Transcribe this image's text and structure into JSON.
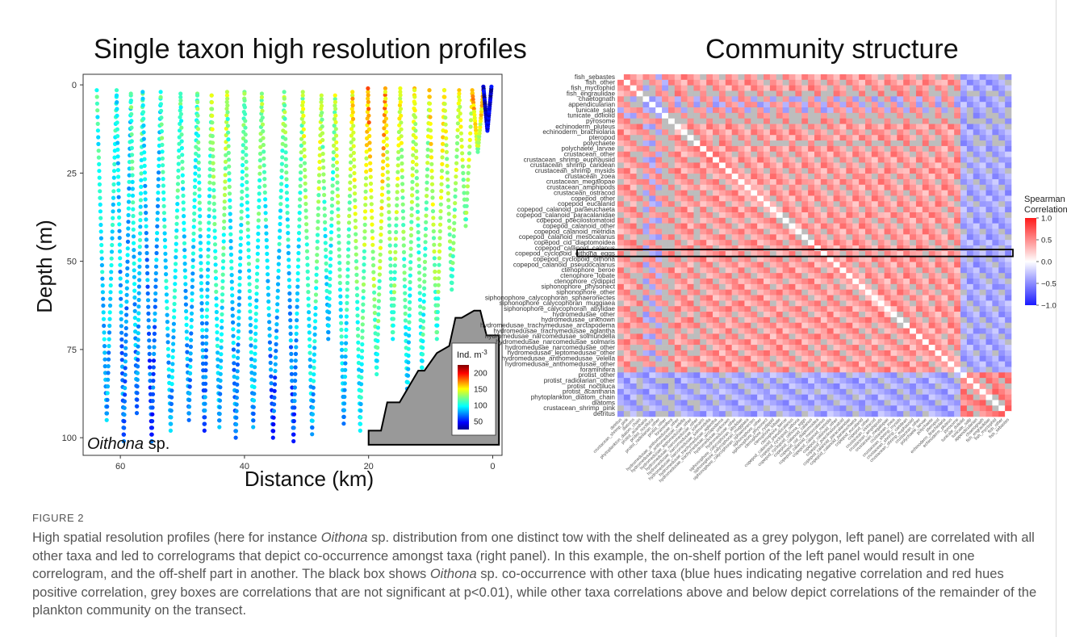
{
  "titles": {
    "left": "Single taxon high resolution profiles",
    "right": "Community structure"
  },
  "chart_data": [
    {
      "type": "scatter",
      "title": "Single taxon high resolution profiles",
      "xlabel": "Distance (km)",
      "ylabel": "Depth (m)",
      "xlim": [
        66,
        -1.5
      ],
      "ylim": [
        105,
        -3
      ],
      "x_ticks": [
        60,
        40,
        20,
        0
      ],
      "y_ticks": [
        0,
        25,
        50,
        75,
        100
      ],
      "annotation": "Oithona sp.",
      "annotation_italic": "Oithona",
      "annotation_rest": " sp.",
      "legend": {
        "title": "Ind. m",
        "title_sup": "-3",
        "ticks": [
          200,
          150,
          100,
          50
        ],
        "range": [
          25,
          225
        ],
        "placement": "bottom-right"
      },
      "shelf_polygon": [
        [
          20,
          100
        ],
        [
          20,
          98
        ],
        [
          18,
          98
        ],
        [
          17,
          90
        ],
        [
          15,
          90
        ],
        [
          12,
          81
        ],
        [
          11,
          81
        ],
        [
          9,
          76
        ],
        [
          7,
          74
        ],
        [
          6,
          66
        ],
        [
          5,
          66
        ],
        [
          3,
          64
        ],
        [
          2,
          64
        ],
        [
          1,
          71
        ],
        [
          -1,
          71
        ],
        [
          -1,
          102
        ],
        [
          20,
          102
        ]
      ],
      "profiles": [
        {
          "top": 63.8,
          "bottom": 60.6,
          "dmin": 1.5,
          "dmax": 95,
          "top_val": 110,
          "bottom_val": 80
        },
        {
          "top": 60.6,
          "bottom": 58.3,
          "dmin": 3,
          "dmax": 101,
          "top_val": 100,
          "bottom_val": 70
        },
        {
          "top": 58.3,
          "bottom": 56.4,
          "dmin": 2.5,
          "dmax": 93,
          "top_val": 120,
          "bottom_val": 70
        },
        {
          "top": 56.4,
          "bottom": 53.5,
          "dmin": 2,
          "dmax": 101,
          "top_val": 100,
          "bottom_val": 60
        },
        {
          "top": 53.5,
          "bottom": 50.3,
          "dmin": 3.5,
          "dmax": 98,
          "top_val": 120,
          "bottom_val": 80
        },
        {
          "top": 50.3,
          "bottom": 47.6,
          "dmin": 2.5,
          "dmax": 95,
          "top_val": 115,
          "bottom_val": 75
        },
        {
          "top": 47.6,
          "bottom": 45.3,
          "dmin": 3,
          "dmax": 98,
          "top_val": 125,
          "bottom_val": 70
        },
        {
          "top": 45.3,
          "bottom": 42.8,
          "dmin": 3,
          "dmax": 97,
          "top_val": 140,
          "bottom_val": 80
        },
        {
          "top": 42.8,
          "bottom": 40.0,
          "dmin": 2,
          "dmax": 100,
          "top_val": 125,
          "bottom_val": 70
        },
        {
          "top": 40.0,
          "bottom": 37.2,
          "dmin": 2.5,
          "dmax": 97,
          "top_val": 130,
          "bottom_val": 80
        },
        {
          "top": 37.2,
          "bottom": 33.6,
          "dmin": 3.5,
          "dmax": 100,
          "top_val": 130,
          "bottom_val": 60
        },
        {
          "top": 33.6,
          "bottom": 30.6,
          "dmin": 2,
          "dmax": 101,
          "top_val": 130,
          "bottom_val": 60
        },
        {
          "top": 30.6,
          "bottom": 27.6,
          "dmin": 3,
          "dmax": 99,
          "top_val": 150,
          "bottom_val": 80
        },
        {
          "top": 27.6,
          "bottom": 25.4,
          "dmin": 4,
          "dmax": 72,
          "top_val": 130,
          "bottom_val": 90
        },
        {
          "top": 25.4,
          "bottom": 22.6,
          "dmin": 3,
          "dmax": 96,
          "top_val": 150,
          "bottom_val": 80
        },
        {
          "top": 22.6,
          "bottom": 20.1,
          "dmin": 2,
          "dmax": 98,
          "top_val": 160,
          "bottom_val": 90
        },
        {
          "top": 20.1,
          "bottom": 17.3,
          "dmin": 1,
          "dmax": 82,
          "top_val": 180,
          "bottom_val": 100
        },
        {
          "top": 17.3,
          "bottom": 14.9,
          "dmin": 2,
          "dmax": 72,
          "top_val": 150,
          "bottom_val": 110
        },
        {
          "top": 14.9,
          "bottom": 12.6,
          "dmin": 1,
          "dmax": 90,
          "top_val": 150,
          "bottom_val": 90
        },
        {
          "top": 12.6,
          "bottom": 10.2,
          "dmin": 1.5,
          "dmax": 82,
          "top_val": 140,
          "bottom_val": 100
        },
        {
          "top": 10.2,
          "bottom": 7.8,
          "dmin": 1.5,
          "dmax": 72,
          "top_val": 160,
          "bottom_val": 110
        },
        {
          "top": 7.8,
          "bottom": 5.4,
          "dmin": 1.5,
          "dmax": 58,
          "top_val": 150,
          "bottom_val": 110
        },
        {
          "top": 5.4,
          "bottom": 3.3,
          "dmin": 2.5,
          "dmax": 40,
          "top_val": 150,
          "bottom_val": 120
        },
        {
          "top": 3.3,
          "bottom": 1.5,
          "dmin": 1.5,
          "dmax": 19,
          "top_val": 170,
          "bottom_val": 130
        },
        {
          "top": 1.5,
          "bottom": 0.2,
          "dmin": 0.5,
          "dmax": 13,
          "top_val": 40,
          "bottom_val": 40
        }
      ]
    },
    {
      "type": "heatmap",
      "title": "Community structure",
      "taxa": [
        "fish_sebastes",
        "fish_other",
        "fish_myctophid",
        "fish_engraulidae",
        "chaetognath",
        "appendicularian",
        "tunicate_salp",
        "tunicate_doliolid",
        "pyrosome",
        "echinoderm_pluteus",
        "echinoderm_brachiolaria",
        "pteropod",
        "polychaete",
        "polychaete_larvae",
        "crustacean_other",
        "crustacean_shrimp_euphausiid",
        "crustacean_shrimp_caridean",
        "crustacean_shrimp_mysids",
        "crustacean_zoea",
        "crustacean_megalopae",
        "crustacean_amphipods",
        "crustacean_ostracod",
        "copepod_other",
        "copepod_eucalanid",
        "copepod_calanoid_paraeuchaeta",
        "copepod_calanoid_paracalanidae",
        "copepod_poecilostomatoid",
        "copepod_calanoid_other",
        "copepod_calanoid_metridia",
        "copepod_calanoid_mesocalanus",
        "copepod_cid_diaptomoidea",
        "copepod_calanoid_calanus",
        "copepod_cyclopoid_oithona_eggs",
        "copepod_cyclopoid_oithona",
        "copepod_calanoid_pseudocalanus",
        "ctenophore_beroe",
        "ctenophore_lobate",
        "ctenophore_cydippid",
        "siphonophore_physonect",
        "siphonophore_other",
        "siphonophore_calycophoran_sphaeronectes",
        "siphonophore_calycophoran_muggiaea",
        "siphonophore_calycophoran_abylidae",
        "hydromedusae_other",
        "hydromedusae_unknown",
        "hydromedusae_trachymedusae_arctapodema",
        "hydromedusae_trachymedusae_aglantha",
        "hydromedusae_narcomedusae_solmundella",
        "hydromedusae_narcomedusae_solmaris",
        "hydromedusae_narcomedusae_other",
        "hydromedusae_leptomedusae_other",
        "hydromedusae_anthomedusae_velella",
        "hydromedusae_anthomedusae_other",
        "foraminifera",
        "protist_other",
        "protist_radiolarian_other",
        "protist_noctiluca",
        "protist_acantharia",
        "phytoplankton_diatom_chain",
        "diatoms",
        "crustacean_shrimp_pink",
        "detritus"
      ],
      "highlight_taxon": "copepod_cyclopoid_oithona",
      "legend": {
        "title": [
          "Spearman",
          "Correlation"
        ],
        "ticks": [
          "1.0",
          "0.5",
          "0.0",
          "−1.0",
          "−0.5"
        ],
        "tick_values": [
          1.0,
          0.5,
          0.0,
          -1.0,
          -0.5
        ],
        "range": [
          -1,
          1
        ],
        "placement": "right"
      },
      "grey_meaning": "not significant at p<0.01"
    }
  ],
  "caption": {
    "label": "FIGURE 2",
    "t1": "High spatial resolution profiles (here for instance ",
    "em1": "Oithona",
    "t2": " sp. distribution from one distinct tow with the shelf delineated as a grey polygon, left panel) are correlated with all other taxa and led to correlograms that depict co-occurrence amongst taxa (right panel). In this example, the on-shelf portion of the left panel would result in one correlogram, and the off-shelf part in another. The black box shows ",
    "em2": "Oithona",
    "t3": " sp. co-occurrence with other taxa (blue hues indicating negative correlation and red hues positive correlation, grey boxes are correlations that are not significant at p<0.01), while other taxa correlations above and below depict correlations of the remainder of the plankton community on the transect."
  }
}
